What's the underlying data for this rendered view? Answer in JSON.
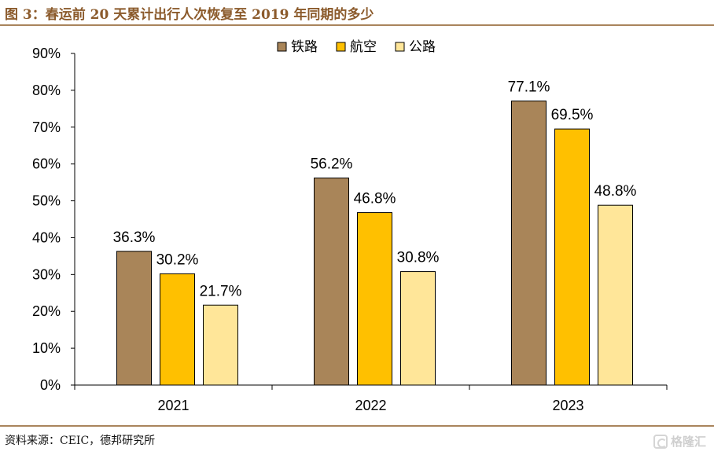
{
  "figure": {
    "title": "图 3：春运前 20 天累计出行人次恢复至 2019 年同期的多少",
    "source": "资料来源：CEIC，德邦研究所",
    "watermark": "格隆汇"
  },
  "chart_data": {
    "type": "bar",
    "categories": [
      "2021",
      "2022",
      "2023"
    ],
    "series": [
      {
        "name": "铁路",
        "values": [
          36.3,
          56.2,
          77.1
        ],
        "color": "#a98559"
      },
      {
        "name": "航空",
        "values": [
          30.2,
          46.8,
          69.5
        ],
        "color": "#ffc000"
      },
      {
        "name": "公路",
        "values": [
          21.7,
          30.8,
          48.8
        ],
        "color": "#ffe699"
      }
    ],
    "ylim": [
      0,
      90
    ],
    "yticks": [
      "0%",
      "10%",
      "20%",
      "30%",
      "40%",
      "50%",
      "60%",
      "70%",
      "80%",
      "90%"
    ],
    "value_format": "percent_1dp",
    "grid": false,
    "legend_position": "top-center"
  }
}
